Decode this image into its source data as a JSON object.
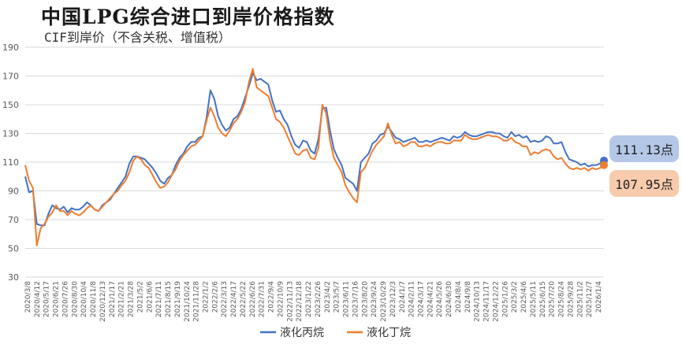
{
  "title": "中国LPG综合进口到岸价格指数",
  "subtitle": "CIF到岸价（不含关税、增值税）",
  "callouts": {
    "propane": "111.13点",
    "butane": "107.95点"
  },
  "colors": {
    "propane": "#4472c4",
    "butane": "#ed7d31",
    "grid": "#d9d9d9",
    "axis_text": "#595959"
  },
  "chart_data": {
    "type": "line",
    "title": "中国LPG综合进口到岸价格指数",
    "subtitle": "CIF到岸价（不含关税、增值税）",
    "ylim": [
      30,
      190
    ],
    "yticks": [
      30,
      50,
      70,
      90,
      110,
      130,
      150,
      170,
      190
    ],
    "grid": "horizontal",
    "legend_position": "bottom",
    "x_tick_labels": [
      "2020/3/8",
      "2020/4/12",
      "2020/5/17",
      "2020/6/21",
      "2020/7/26",
      "2020/8/30",
      "2020/10/4",
      "2020/11/8",
      "2020/12/13",
      "2021/1/17",
      "2021/2/21",
      "2021/3/28",
      "2021/5/2",
      "2021/6/6",
      "2021/7/11",
      "2021/8/15",
      "2021/9/19",
      "2021/10/24",
      "2021/11/28",
      "2022/1/2",
      "2022/2/6",
      "2022/3/13",
      "2022/4/17",
      "2022/5/22",
      "2022/6/26",
      "2022/7/31",
      "2022/9/4",
      "2022/10/9",
      "2022/11/13",
      "2022/12/18",
      "2023/1/22",
      "2023/2/26",
      "2023/4/2",
      "2023/5/7",
      "2023/6/11",
      "2023/7/16",
      "2023/8/20",
      "2023/9/24",
      "2023/10/29",
      "2023/12/3",
      "2024/1/7",
      "2024/2/11",
      "2024/3/17",
      "2024/4/21",
      "2024/5/26",
      "2024/6/30",
      "2024/8/4",
      "2024/9/8",
      "2024/10/13",
      "2024/11/17",
      "2024/12/22",
      "2025/1/26",
      "2025/3/2",
      "2025/4/6",
      "2025/5/11",
      "2025/6/15",
      "2025/7/20",
      "2025/8/24",
      "2025/9/28",
      "2025/11/2",
      "2025/12/7",
      "2026/1/4"
    ],
    "series": [
      {
        "name": "液化丙烷",
        "values": [
          100,
          89,
          90,
          67,
          66,
          66,
          74,
          80,
          78,
          77,
          79,
          75,
          78,
          77,
          77,
          79,
          82,
          80,
          77,
          76,
          80,
          82,
          84,
          88,
          92,
          96,
          100,
          109,
          114,
          114,
          113,
          112,
          109,
          106,
          102,
          97,
          95,
          99,
          101,
          108,
          113,
          116,
          121,
          124,
          124,
          127,
          128,
          141,
          160,
          154,
          142,
          136,
          132,
          134,
          140,
          142,
          147,
          155,
          163,
          172,
          167,
          168,
          166,
          164,
          153,
          145,
          146,
          140,
          136,
          128,
          122,
          120,
          125,
          124,
          118,
          116,
          126,
          147,
          148,
          132,
          119,
          113,
          108,
          99,
          97,
          95,
          90,
          110,
          113,
          116,
          123,
          125,
          129,
          130,
          135,
          131,
          127,
          126,
          124,
          125,
          126,
          127,
          124,
          124,
          125,
          124,
          125,
          126,
          127,
          126,
          125,
          128,
          127,
          128,
          131,
          129,
          128,
          128,
          129,
          130,
          131,
          131,
          130,
          130,
          128,
          127,
          131,
          128,
          129,
          127,
          128,
          124,
          125,
          124,
          125,
          128,
          127,
          123,
          123,
          124,
          117,
          112,
          111,
          110,
          108,
          109,
          107,
          108,
          108,
          109,
          111.13
        ]
      },
      {
        "name": "液化丁烷",
        "values": [
          108,
          97,
          92,
          52,
          64,
          67,
          72,
          75,
          80,
          76,
          76,
          73,
          76,
          74,
          73,
          75,
          78,
          80,
          77,
          76,
          79,
          82,
          85,
          88,
          90,
          94,
          97,
          103,
          111,
          114,
          112,
          108,
          106,
          101,
          96,
          92,
          93,
          96,
          101,
          105,
          111,
          115,
          118,
          121,
          122,
          125,
          128,
          139,
          148,
          142,
          134,
          130,
          128,
          132,
          137,
          140,
          145,
          152,
          166,
          175,
          162,
          160,
          158,
          156,
          148,
          140,
          138,
          134,
          128,
          122,
          116,
          115,
          118,
          119,
          113,
          112,
          120,
          150,
          144,
          125,
          113,
          108,
          103,
          94,
          89,
          85,
          82,
          103,
          106,
          112,
          118,
          122,
          125,
          128,
          137,
          129,
          123,
          124,
          121,
          122,
          124,
          124,
          121,
          121,
          122,
          121,
          123,
          124,
          124,
          123,
          123,
          125,
          125,
          125,
          129,
          127,
          126,
          126,
          127,
          128,
          129,
          128,
          128,
          127,
          125,
          125,
          127,
          124,
          123,
          121,
          121,
          115,
          117,
          116,
          118,
          119,
          118,
          114,
          112,
          113,
          109,
          106,
          105,
          106,
          105,
          106,
          104,
          106,
          105,
          106,
          107.95
        ]
      }
    ]
  }
}
